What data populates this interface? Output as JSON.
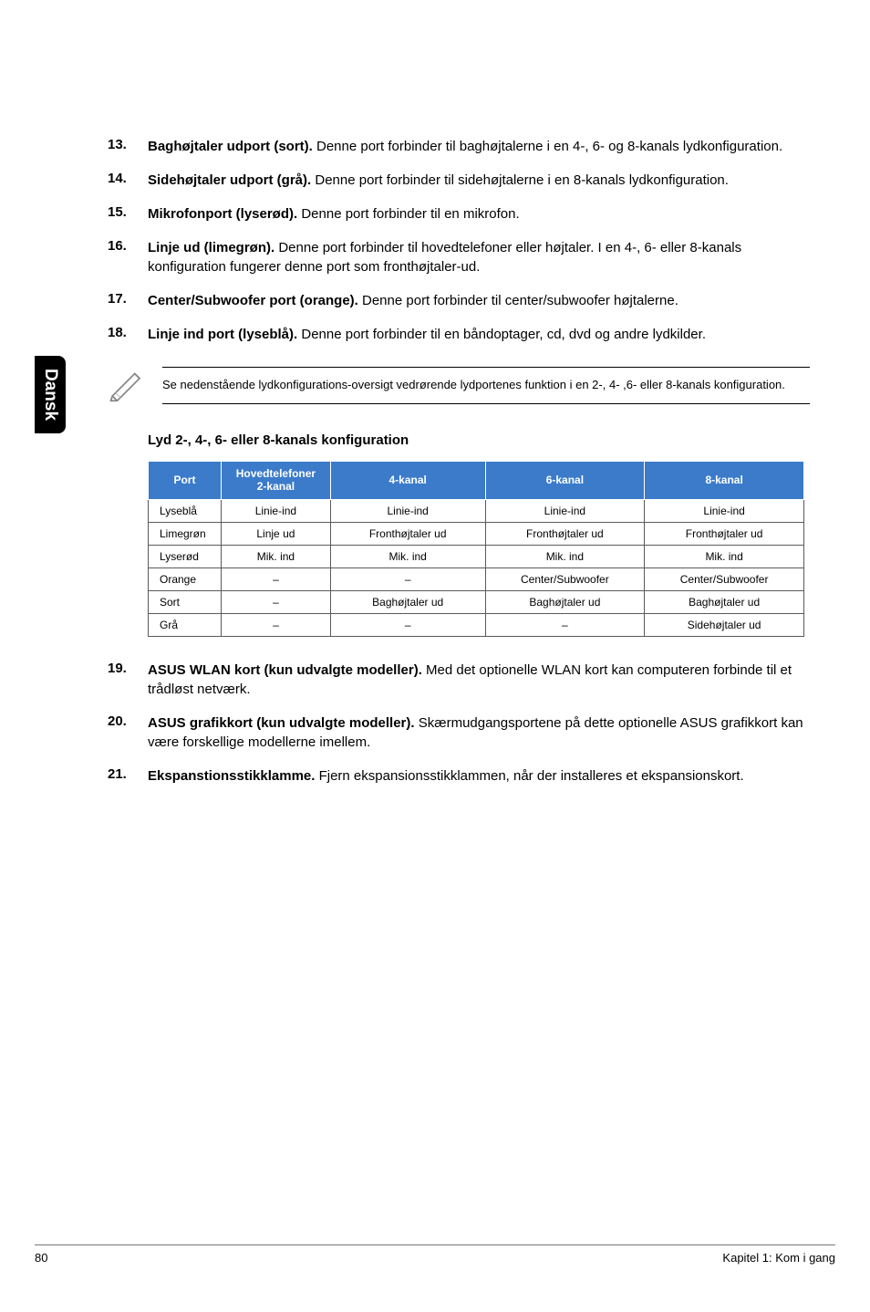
{
  "side_tab": "Dansk",
  "items": [
    {
      "num": "13.",
      "bold": "Baghøjtaler udport (sort).",
      "text": " Denne port forbinder til baghøjtalerne i en 4-, 6- og 8-kanals lydkonfiguration."
    },
    {
      "num": "14.",
      "bold": "Sidehøjtaler udport (grå).",
      "text": " Denne port forbinder til sidehøjtalerne i en 8-kanals lydkonfiguration."
    },
    {
      "num": "15.",
      "bold": "Mikrofonport (lyserød).",
      "text": " Denne port forbinder til en mikrofon."
    },
    {
      "num": "16.",
      "bold": "Linje ud (limegrøn).",
      "text": " Denne port forbinder til hovedtelefoner eller højtaler. I en 4-, 6- eller 8-kanals konfiguration fungerer denne port som fronthøjtaler-ud."
    },
    {
      "num": "17.",
      "bold": "Center/Subwoofer port (orange).",
      "text": " Denne port forbinder til center/subwoofer højtalerne."
    },
    {
      "num": "18.",
      "bold": "Linje ind port (lyseblå).",
      "text": " Denne port forbinder til en båndoptager, cd, dvd og andre lydkilder."
    }
  ],
  "note": "Se nedenstående lydkonfigurations-oversigt vedrørende lydportenes funktion i en 2-, 4- ,6- eller 8-kanals konfiguration.",
  "table_heading": "Lyd 2-, 4-, 6- eller 8-kanals konfiguration",
  "table": {
    "headers": [
      "Port",
      "Hovedtelefoner 2-kanal",
      "4-kanal",
      "6-kanal",
      "8-kanal"
    ],
    "rows": [
      [
        "Lyseblå",
        "Linie-ind",
        "Linie-ind",
        "Linie-ind",
        "Linie-ind"
      ],
      [
        "Limegrøn",
        "Linje ud",
        "Fronthøjtaler ud",
        "Fronthøjtaler ud",
        "Fronthøjtaler ud"
      ],
      [
        "Lyserød",
        "Mik. ind",
        "Mik. ind",
        "Mik. ind",
        "Mik. ind"
      ],
      [
        "Orange",
        "–",
        "–",
        "Center/Subwoofer",
        "Center/Subwoofer"
      ],
      [
        "Sort",
        "–",
        "Baghøjtaler ud",
        "Baghøjtaler ud",
        "Baghøjtaler ud"
      ],
      [
        "Grå",
        "–",
        "–",
        "–",
        "Sidehøjtaler ud"
      ]
    ],
    "col_widths": [
      "80px",
      "120px",
      "170px",
      "175px",
      "175px"
    ],
    "header_bg": "#3b7bca",
    "header_color": "#ffffff",
    "border_color": "#5a5a5a"
  },
  "items2": [
    {
      "num": "19.",
      "bold": "ASUS WLAN kort (kun udvalgte modeller).",
      "text": " Med det optionelle WLAN kort kan computeren forbinde til et trådløst netværk."
    },
    {
      "num": "20.",
      "bold": "ASUS grafikkort (kun udvalgte modeller).",
      "text": " Skærmudgangsportene på dette optionelle ASUS grafikkort kan være forskellige modellerne imellem."
    },
    {
      "num": "21.",
      "bold": "Ekspanstionsstikklamme.",
      "text": " Fjern ekspansionsstikklammen, når der installeres et ekspansionskort."
    }
  ],
  "footer": {
    "page": "80",
    "chapter": "Kapitel 1: Kom i gang"
  }
}
